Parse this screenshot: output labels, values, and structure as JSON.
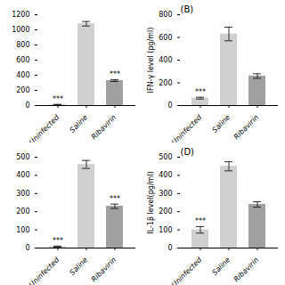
{
  "chart_data": [
    {
      "type": "bar",
      "categories": [
        "Uninfected",
        "Saline",
        "Ribavirin"
      ],
      "values": [
        12,
        1080,
        330
      ],
      "errors": [
        3,
        30,
        12
      ],
      "colors": [
        "#d0d0d0",
        "#d0d0d0",
        "#a0a0a0"
      ],
      "ylim": [
        0,
        1200
      ],
      "yticks": [
        0,
        200,
        400,
        600,
        800,
        1000,
        1200
      ],
      "annotations": [
        {
          "category": "Uninfected",
          "text": "***"
        },
        {
          "category": "Ribavirin",
          "text": "***"
        }
      ],
      "grid": false
    },
    {
      "type": "bar",
      "title": "(B)",
      "ylabel": "IFN-γ level (pg/ml)",
      "categories": [
        "Uninfected",
        "Saline",
        "Ribavirin"
      ],
      "values": [
        65,
        630,
        260
      ],
      "errors": [
        8,
        60,
        20
      ],
      "colors": [
        "#d0d0d0",
        "#d0d0d0",
        "#a0a0a0"
      ],
      "ylim": [
        0,
        800
      ],
      "yticks": [
        0,
        200,
        400,
        600,
        800
      ],
      "annotations": [
        {
          "category": "Uninfected",
          "text": "***"
        }
      ],
      "grid": false
    },
    {
      "type": "bar",
      "categories": [
        "Uninfected",
        "Saline",
        "Ribavirin"
      ],
      "values": [
        8,
        460,
        230
      ],
      "errors": [
        3,
        22,
        12
      ],
      "colors": [
        "#d0d0d0",
        "#d0d0d0",
        "#a0a0a0"
      ],
      "ylim": [
        0,
        500
      ],
      "yticks": [
        0,
        100,
        200,
        300,
        400,
        500
      ],
      "annotations": [
        {
          "category": "Uninfected",
          "text": "***"
        },
        {
          "category": "Ribavirin",
          "text": "***"
        }
      ],
      "grid": false
    },
    {
      "type": "bar",
      "title": "(D)",
      "ylabel": "IL-1β level(pg/ml)",
      "categories": [
        "Uninfected",
        "Saline",
        "Ribavirin"
      ],
      "values": [
        100,
        450,
        240
      ],
      "errors": [
        18,
        25,
        15
      ],
      "colors": [
        "#d0d0d0",
        "#d0d0d0",
        "#a0a0a0"
      ],
      "ylim": [
        0,
        500
      ],
      "yticks": [
        0,
        100,
        200,
        300,
        400,
        500
      ],
      "annotations": [
        {
          "category": "Uninfected",
          "text": "***"
        }
      ],
      "grid": false
    }
  ]
}
